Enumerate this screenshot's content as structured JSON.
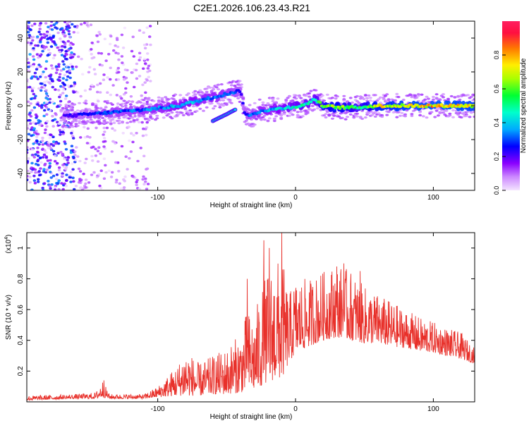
{
  "figure": {
    "title": "C2E1.2026.106.23.43.R21"
  },
  "chart_data": [
    {
      "type": "heatmap",
      "title": "C2E1.2026.106.23.43.R21",
      "xlabel": "Height of straight line (km)",
      "ylabel": "Frequency (Hz)",
      "xlim": [
        -195,
        130
      ],
      "ylim": [
        -50,
        50
      ],
      "x_ticks": [
        -100,
        0,
        100
      ],
      "x_tick_labels": [
        "-100",
        "0",
        "100"
      ],
      "y_ticks": [
        -40,
        -20,
        0,
        20,
        40
      ],
      "y_tick_labels": [
        "-40",
        "-20",
        "0",
        "20",
        "40"
      ],
      "colorbar": {
        "label": "Normalized spectral amplitude",
        "range": [
          0,
          1
        ],
        "ticks": [
          0,
          0.2,
          0.4,
          0.6,
          0.8
        ],
        "tick_labels": [
          "0.0",
          "0.2",
          "0.4",
          "0.6",
          "0.8"
        ],
        "colors": [
          "#f4e4ff",
          "#cc88ff",
          "#8a00ff",
          "#0000ff",
          "#00ccff",
          "#00ff66",
          "#ffff00",
          "#ff8800",
          "#ff0040"
        ]
      },
      "ridge": {
        "x": [
          -165,
          -150,
          -135,
          -120,
          -105,
          -95,
          -85,
          -75,
          -65,
          -55,
          -45,
          -40,
          -37,
          -33,
          -25,
          -15,
          -5,
          5,
          10,
          13,
          20,
          30,
          45,
          60,
          80,
          100,
          130
        ],
        "frequency": [
          -6,
          -5,
          -4,
          -3,
          -2,
          -1,
          0,
          2,
          4,
          6,
          8,
          9,
          -4,
          -6,
          -3,
          -2,
          -1,
          0,
          2,
          4,
          0,
          -1,
          -1,
          0,
          0,
          0,
          0
        ],
        "amplitude": [
          0.25,
          0.3,
          0.35,
          0.35,
          0.4,
          0.4,
          0.45,
          0.45,
          0.4,
          0.4,
          0.35,
          0.3,
          0.3,
          0.35,
          0.4,
          0.45,
          0.5,
          0.55,
          0.5,
          0.5,
          0.7,
          0.75,
          0.6,
          0.8,
          0.85,
          0.9,
          0.85
        ]
      },
      "branch": {
        "x": [
          -60,
          -50,
          -43
        ],
        "frequency": [
          -9,
          -5,
          -2
        ]
      },
      "noise_region": [
        -195,
        -105
      ]
    },
    {
      "type": "line",
      "xlabel": "Height of straight line (km)",
      "ylabel": "SNR (10 * v/v)",
      "y_scale_label": "(x10",
      "y_scale_exp": "4",
      "y_scale_close": ")",
      "xlim": [
        -195,
        130
      ],
      "ylim": [
        0,
        1.1
      ],
      "x_ticks": [
        -100,
        0,
        100
      ],
      "x_tick_labels": [
        "-100",
        "0",
        "100"
      ],
      "y_ticks": [
        0.2,
        0.4,
        0.6,
        0.8,
        1.0
      ],
      "y_tick_labels": [
        "0.2",
        "0.4",
        "0.6",
        "0.8",
        "1"
      ],
      "color": "#e8302a",
      "envelope": {
        "x": [
          -195,
          -160,
          -145,
          -140,
          -135,
          -110,
          -100,
          -85,
          -80,
          -70,
          -60,
          -50,
          -40,
          -35,
          -30,
          -25,
          -20,
          -15,
          -10,
          -5,
          0,
          10,
          20,
          30,
          40,
          50,
          60,
          70,
          80,
          90,
          100,
          110,
          120,
          130
        ],
        "low": [
          0.01,
          0.02,
          0.02,
          0.03,
          0.02,
          0.02,
          0.03,
          0.04,
          0.04,
          0.04,
          0.05,
          0.05,
          0.06,
          0.07,
          0.08,
          0.1,
          0.12,
          0.15,
          0.15,
          0.25,
          0.32,
          0.36,
          0.4,
          0.42,
          0.4,
          0.38,
          0.38,
          0.36,
          0.35,
          0.33,
          0.32,
          0.3,
          0.28,
          0.25
        ],
        "high": [
          0.04,
          0.05,
          0.06,
          0.14,
          0.05,
          0.05,
          0.1,
          0.25,
          0.35,
          0.25,
          0.3,
          0.35,
          0.45,
          0.6,
          0.55,
          0.75,
          0.85,
          0.9,
          0.95,
          0.7,
          0.8,
          0.8,
          0.85,
          0.9,
          0.85,
          0.75,
          0.7,
          0.65,
          0.6,
          0.55,
          0.52,
          0.48,
          0.45,
          0.35
        ]
      },
      "spikes": [
        {
          "x": -35,
          "y": 0.8
        },
        {
          "x": -23,
          "y": 1.05
        },
        {
          "x": -19,
          "y": 1.0
        },
        {
          "x": -10,
          "y": 1.1
        },
        {
          "x": 30,
          "y": 0.88
        },
        {
          "x": 35,
          "y": 0.9
        },
        {
          "x": 47,
          "y": 0.85
        },
        {
          "x": -139,
          "y": 0.14
        }
      ]
    }
  ]
}
